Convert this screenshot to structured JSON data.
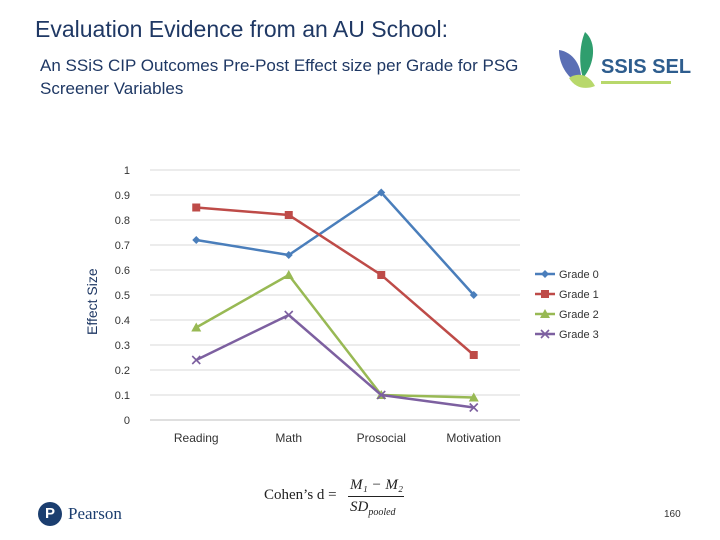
{
  "slide": {
    "title": "Evaluation Evidence from an AU School:",
    "subtitle": "An SSiS CIP Outcomes Pre-Post Effect size per Grade for PSG Screener Variables",
    "logo_text": "SSIS SEL",
    "formula": {
      "lhs": "Cohen’s d =",
      "numerator": "M₁ − M₂",
      "denominator": "SD",
      "denominator_sub": "pooled"
    },
    "brand": "Pearson",
    "page_number": "160"
  },
  "colors": {
    "title": "#1f3864",
    "grade0": "#4a7ebb",
    "grade1": "#be4b48",
    "grade2": "#98b954",
    "grade3": "#7d60a0",
    "logo_green": "#2f9e6e",
    "logo_blue": "#5b6fb5",
    "logo_lime": "#b8d86b"
  },
  "chart_data": {
    "type": "line",
    "ylabel": "Effect Size",
    "xlabel": "",
    "categories": [
      "Reading",
      "Math",
      "Prosocial",
      "Motivation"
    ],
    "ylim": [
      0,
      1
    ],
    "yticks": [
      "0",
      "0.1",
      "0.2",
      "0.3",
      "0.4",
      "0.5",
      "0.6",
      "0.7",
      "0.8",
      "0.9",
      "1"
    ],
    "grid": true,
    "legend_position": "right",
    "series": [
      {
        "name": "Grade 0",
        "marker": "diamond",
        "color": "#4a7ebb",
        "values": [
          0.72,
          0.66,
          0.91,
          0.5
        ]
      },
      {
        "name": "Grade 1",
        "marker": "square",
        "color": "#be4b48",
        "values": [
          0.85,
          0.82,
          0.58,
          0.26
        ]
      },
      {
        "name": "Grade 2",
        "marker": "triangle",
        "color": "#98b954",
        "values": [
          0.37,
          0.58,
          0.1,
          0.09
        ]
      },
      {
        "name": "Grade 3",
        "marker": "x",
        "color": "#7d60a0",
        "values": [
          0.24,
          0.42,
          0.1,
          0.05
        ]
      }
    ]
  }
}
